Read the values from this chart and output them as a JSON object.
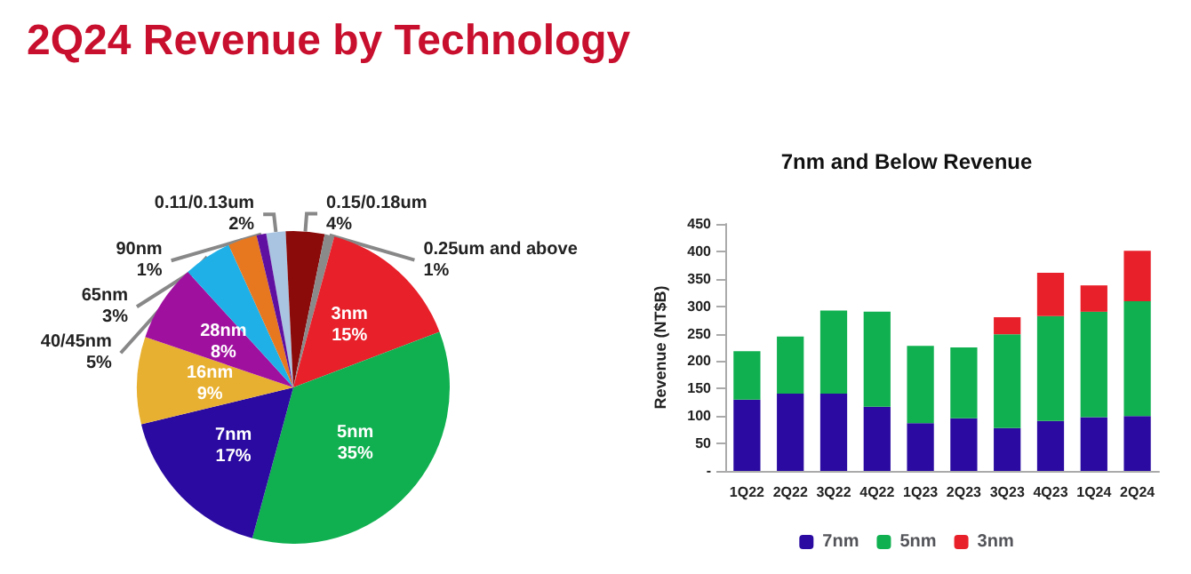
{
  "chart_data": [
    {
      "type": "pie",
      "title": "2Q24 Revenue by Technology",
      "categories": [
        "0.11/0.13um",
        "0.15/0.18um",
        "0.25um and above",
        "3nm",
        "5nm",
        "7nm",
        "16nm",
        "28nm",
        "40/45nm",
        "65nm",
        "90nm"
      ],
      "values": [
        2,
        4,
        1,
        15,
        35,
        17,
        9,
        8,
        5,
        3,
        1
      ],
      "colors": [
        "#a9c4e0",
        "#8b0a0a",
        "#8a8a8a",
        "#e8202a",
        "#10b050",
        "#2a0aa0",
        "#e8b030",
        "#a0109f",
        "#20b0e8",
        "#e87820",
        "#6010a0"
      ],
      "value_labels": [
        "2%",
        "4%",
        "1%",
        "15%",
        "35%",
        "17%",
        "9%",
        "8%",
        "5%",
        "3%",
        "1%"
      ]
    },
    {
      "type": "bar",
      "title": "7nm and Below Revenue",
      "ylabel": "Revenue (NT$B)",
      "categories": [
        "1Q22",
        "2Q22",
        "3Q22",
        "4Q22",
        "1Q23",
        "2Q23",
        "3Q23",
        "4Q23",
        "1Q24",
        "2Q24"
      ],
      "stacked": true,
      "legend": "bottom",
      "ylim": [
        0,
        450
      ],
      "yticks": [
        {
          "value": 0,
          "label": "-"
        },
        50,
        100,
        150,
        200,
        250,
        300,
        350,
        400,
        450
      ],
      "series": [
        {
          "name": "7nm",
          "color": "#2a0aa0",
          "values": [
            130,
            141,
            141,
            117,
            87,
            96,
            78,
            91,
            98,
            100
          ]
        },
        {
          "name": "5nm",
          "color": "#10b050",
          "values": [
            88,
            104,
            151,
            173,
            141,
            129,
            171,
            191,
            192,
            209
          ]
        },
        {
          "name": "3nm",
          "color": "#e8202a",
          "values": [
            null,
            null,
            null,
            null,
            null,
            null,
            31,
            79,
            48,
            92
          ]
        }
      ]
    }
  ]
}
